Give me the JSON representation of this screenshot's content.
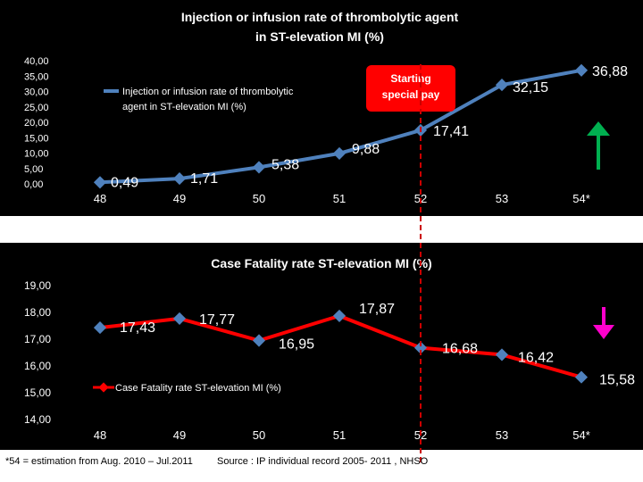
{
  "chart_data": [
    {
      "type": "line",
      "title_lines": [
        "Injection or infusion rate of thrombolytic agent",
        "in ST-elevation  MI  (%)"
      ],
      "categories": [
        "48",
        "49",
        "50",
        "51",
        "52",
        "53",
        "54*"
      ],
      "series": [
        {
          "name": "Injection or infusion rate of thrombolytic agent  in ST-elevation  MI  (%)",
          "values": [
            0.49,
            1.71,
            5.38,
            9.88,
            17.41,
            32.15,
            36.88
          ],
          "color": "#4f81bd"
        }
      ],
      "value_labels": [
        "0,49",
        "1,71",
        "5,38",
        "9,88",
        "17,41",
        "32,15",
        "36,88"
      ],
      "legend_lines": [
        "Injection or infusion rate of thrombolytic",
        "agent  in ST-elevation  MI  (%)"
      ],
      "ylim": [
        0,
        40
      ],
      "yticks": [
        0,
        5,
        10,
        15,
        20,
        25,
        30,
        35,
        40
      ],
      "ytick_labels": [
        "0,00",
        "5,00",
        "10,00",
        "15,00",
        "20,00",
        "25,00",
        "30,00",
        "35,00",
        "40,00"
      ],
      "annotation_lines": [
        "Starting",
        "special pay"
      ],
      "trend": "up",
      "trend_color": "#00b050"
    },
    {
      "type": "line",
      "title": "Case Fatality rate ST-elevation MI (%)",
      "categories": [
        "48",
        "49",
        "50",
        "51",
        "52",
        "53",
        "54*"
      ],
      "series": [
        {
          "name": "Case Fatality rate ST-elevation MI (%)",
          "values": [
            17.43,
            17.77,
            16.95,
            17.87,
            16.68,
            16.42,
            15.58
          ],
          "color": "#ff0000"
        }
      ],
      "value_labels": [
        "17,43",
        "17,77",
        "16,95",
        "17,87",
        "16,68",
        "16,42",
        "15,58"
      ],
      "legend": "Case Fatality rate ST-elevation MI (%)",
      "ylim": [
        14,
        19
      ],
      "yticks": [
        14,
        15,
        16,
        17,
        18,
        19
      ],
      "ytick_labels": [
        "14,00",
        "15,00",
        "16,00",
        "17,00",
        "18,00",
        "19,00"
      ],
      "trend": "down",
      "trend_color": "#ff00cc"
    }
  ],
  "footnote": "*54 = estimation from  Aug. 2010 – Jul.2011",
  "source": "Source : IP individual record  2005- 2011  , NHSO",
  "colors": {
    "panel_bg": "#000000",
    "marker_line": "#cc0000",
    "annotation_bg": "#ff0000"
  }
}
